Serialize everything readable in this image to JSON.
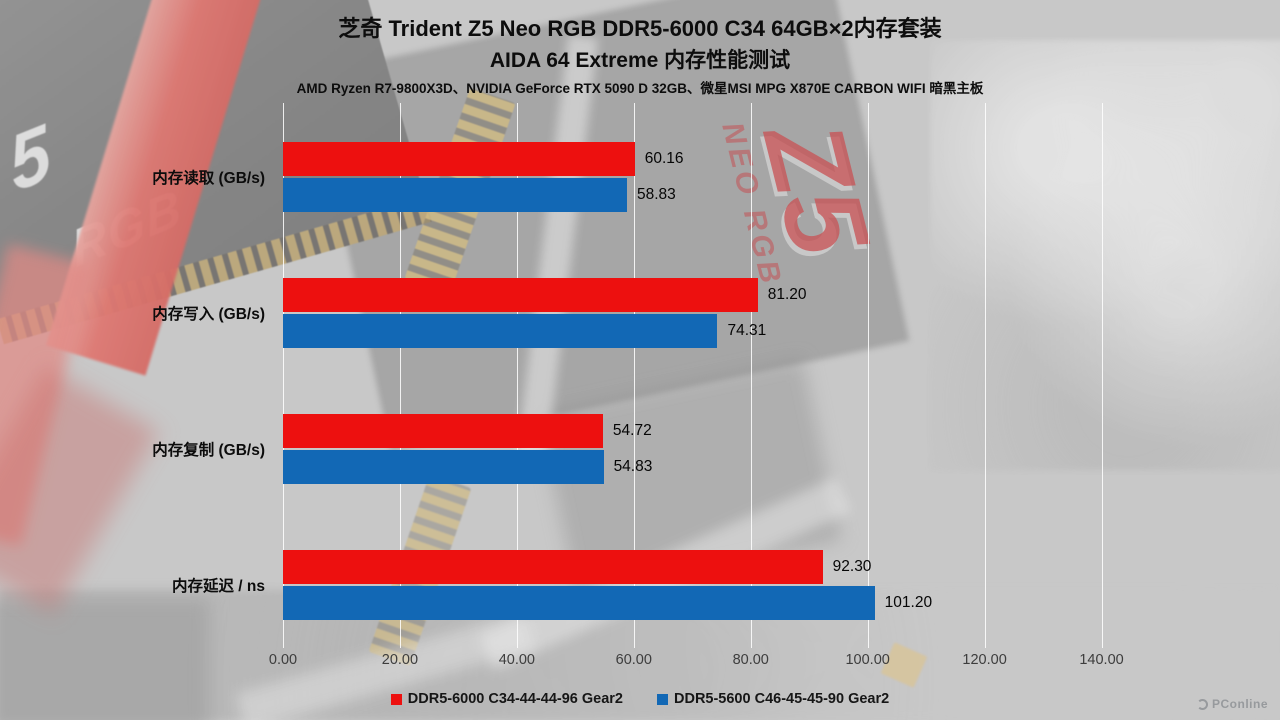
{
  "header": {
    "title_line1": "芝奇 Trident Z5 Neo RGB DDR5-6000 C34 64GB×2内存套装",
    "title_line2": "AIDA 64 Extreme 内存性能测试",
    "subtitle": "AMD Ryzen R7-9800X3D、NVIDIA GeForce RTX 5090 D 32GB、微星MSI MPG X870E CARBON WIFI 暗黑主板"
  },
  "chart_data": {
    "type": "bar",
    "orientation": "horizontal",
    "title": "AIDA 64 Extreme 内存性能测试",
    "categories": [
      "内存读取 (GB/s)",
      "内存写入 (GB/s)",
      "内存复制 (GB/s)",
      "内存延迟 / ns"
    ],
    "series": [
      {
        "name": "DDR5-6000 C34-44-44-96 Gear2",
        "color": "#ed100f",
        "values": [
          60.16,
          81.2,
          54.72,
          92.3
        ],
        "labels": [
          "60.16",
          "81.20",
          "54.72",
          "92.30"
        ]
      },
      {
        "name": "DDR5-5600 C46-45-45-90 Gear2",
        "color": "#1268b5",
        "values": [
          58.83,
          74.31,
          54.83,
          101.2
        ],
        "labels": [
          "58.83",
          "74.31",
          "54.83",
          "101.20"
        ]
      }
    ],
    "x_axis": {
      "min": 0,
      "max": 150,
      "tick_step": 20,
      "tick_values": [
        0,
        20,
        40,
        60,
        80,
        100,
        120,
        140
      ],
      "tick_labels": [
        "0.00",
        "20.00",
        "40.00",
        "60.00",
        "80.00",
        "100.00",
        "120.00",
        "140.00"
      ]
    },
    "grid": true,
    "legend_position": "bottom"
  },
  "background": {
    "photo_text": {
      "ram_big": "5",
      "ram_rgb": "RGB",
      "box_logo_z5": "Z5",
      "box_logo_neorgb": "NEO RGB"
    }
  },
  "watermark": {
    "label": "PConline"
  }
}
